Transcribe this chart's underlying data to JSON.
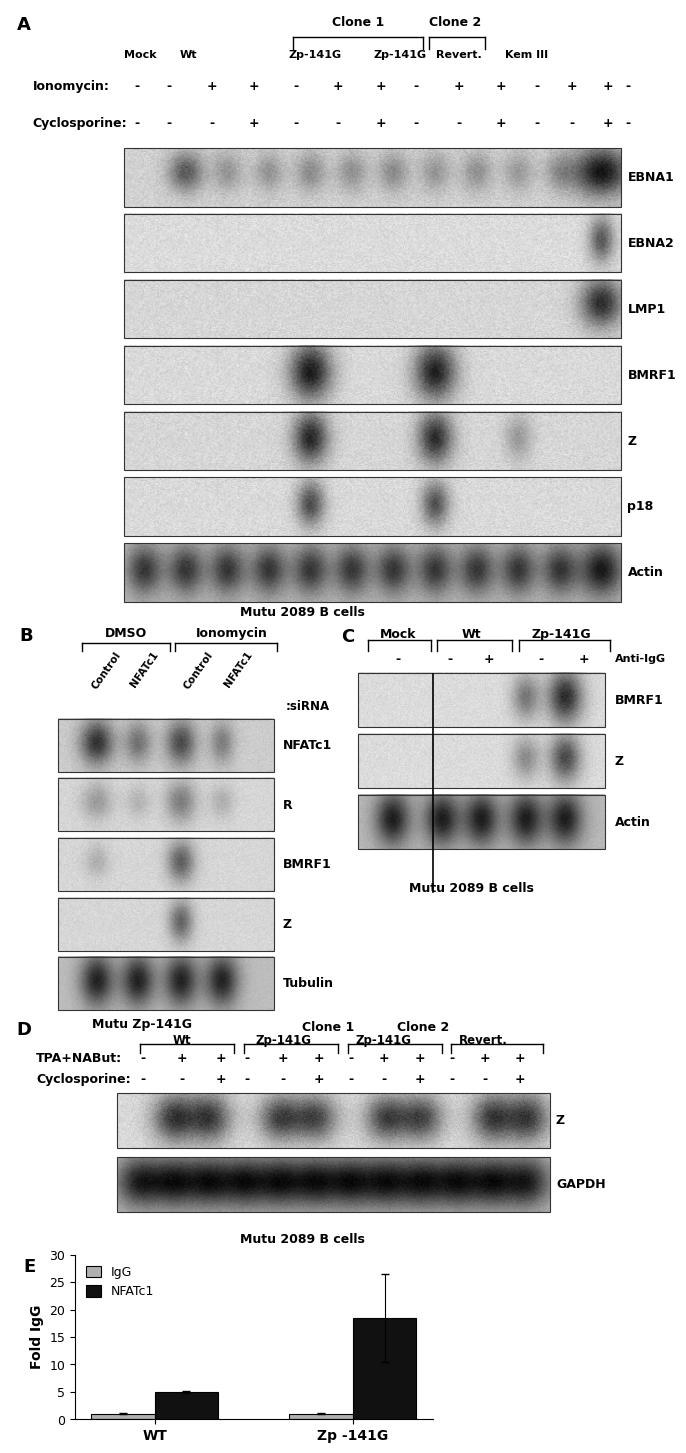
{
  "panel_A": {
    "label": "A",
    "clone1_header": "Clone 1",
    "clone2_header": "Clone 2",
    "col_labels": [
      "Mock",
      "Wt",
      "Zp-141G",
      "Zp-141G",
      "Revert.",
      "Kem III"
    ],
    "iono_signs": [
      "-",
      "-",
      "+",
      "+",
      "-",
      "+",
      "+",
      "-",
      "+",
      "+",
      "-",
      "+",
      "+",
      "-"
    ],
    "cyclo_signs": [
      "-",
      "-",
      "-",
      "+",
      "-",
      "-",
      "+",
      "-",
      "-",
      "+",
      "-",
      "-",
      "+",
      "-"
    ],
    "blot_labels": [
      "EBNA1",
      "EBNA2",
      "LMP1",
      "BMRF1",
      "Z",
      "p18",
      "Actin"
    ],
    "subtitle": "Mutu 2089 B cells"
  },
  "panel_B": {
    "label": "B",
    "dmso_header": "DMSO",
    "iono_header": "Ionomycin",
    "col_labels": [
      "Control",
      "NFATc1",
      "Control",
      "NFATc1"
    ],
    "sirna_label": ":siRNA",
    "blot_labels": [
      "NFATc1",
      "R",
      "BMRF1",
      "Z",
      "Tubulin"
    ],
    "subtitle": "Mutu Zp-141G"
  },
  "panel_C": {
    "label": "C",
    "col_labels": [
      "Mock",
      "Wt",
      "Zp-141G"
    ],
    "anti_igg_label": "Anti-IgG",
    "anti_signs": [
      "-",
      "-",
      "+",
      "-",
      "+"
    ],
    "blot_labels": [
      "BMRF1",
      "Z",
      "Actin"
    ],
    "subtitle": "Mutu 2089 B cells"
  },
  "panel_D": {
    "label": "D",
    "clone1_header": "Clone 1",
    "clone2_header": "Clone 2",
    "col_labels": [
      "Wt",
      "Zp-141G",
      "Zp-141G",
      "Revert."
    ],
    "tpa_signs": [
      "-",
      "+",
      "+",
      "-",
      "+",
      "+",
      "-",
      "+",
      "+",
      "-",
      "+",
      "+"
    ],
    "cyclo_signs": [
      "-",
      "-",
      "+",
      "-",
      "-",
      "+",
      "-",
      "-",
      "+",
      "-",
      "-",
      "+"
    ],
    "blot_labels": [
      "Z",
      "GAPDH"
    ],
    "subtitle": "Mutu 2089 B cells"
  },
  "panel_E": {
    "label": "E",
    "ylabel": "Fold IgG",
    "ylim": [
      0,
      30
    ],
    "yticks": [
      0,
      5,
      10,
      15,
      20,
      25,
      30
    ],
    "groups": [
      "WT",
      "Zp -141G"
    ],
    "igg_values": [
      1.0,
      1.0
    ],
    "igg_errors": [
      0.08,
      0.08
    ],
    "nfat_values": [
      5.0,
      18.5
    ],
    "nfat_errors": [
      0.2,
      8.0
    ],
    "igg_color": "#b0b0b0",
    "nfat_color": "#111111"
  }
}
